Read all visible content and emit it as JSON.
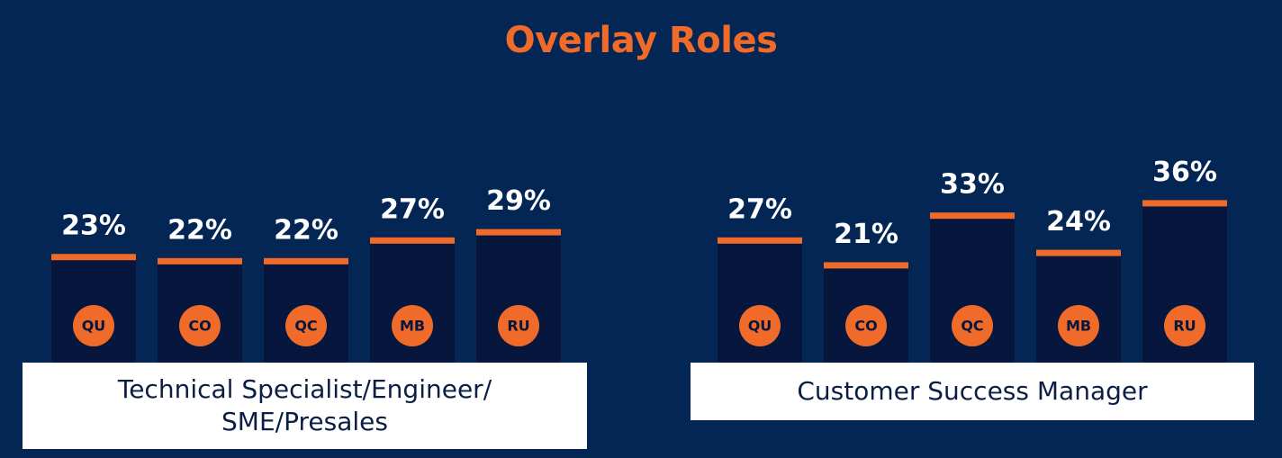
{
  "title": "Overlay Roles",
  "colors": {
    "background": "#032655",
    "accent": "#f06a2a",
    "bar": "#06163d",
    "label_box": "#ffffff"
  },
  "chart_data": [
    {
      "type": "bar",
      "group_label_lines": [
        "Technical Specialist/Engineer/",
        "SME/Presales"
      ],
      "categories": [
        "QU",
        "CO",
        "QC",
        "MB",
        "RU"
      ],
      "values": [
        23,
        22,
        22,
        27,
        29
      ],
      "value_labels": [
        "23%",
        "22%",
        "22%",
        "27%",
        "29%"
      ]
    },
    {
      "type": "bar",
      "group_label_lines": [
        "Customer Success Manager"
      ],
      "categories": [
        "QU",
        "CO",
        "QC",
        "MB",
        "RU"
      ],
      "values": [
        27,
        21,
        33,
        24,
        36
      ],
      "value_labels": [
        "27%",
        "21%",
        "33%",
        "24%",
        "36%"
      ]
    }
  ]
}
